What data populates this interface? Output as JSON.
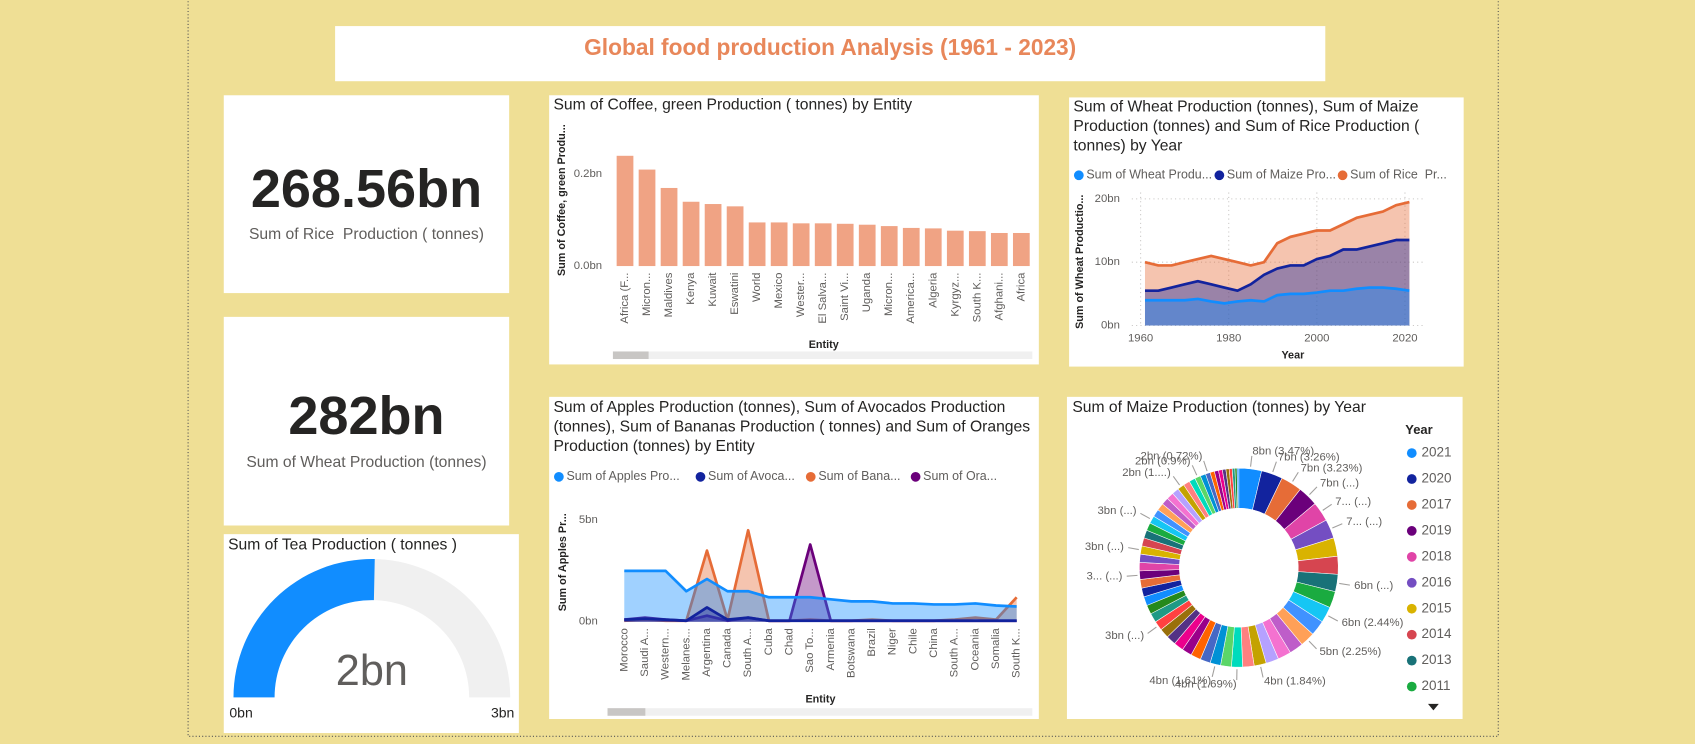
{
  "title": "Global food production Analysis (1961 - 2023)",
  "cards": [
    {
      "value": "268.56bn",
      "label": "Sum of Rice  Production ( tonnes)"
    },
    {
      "value": "282bn",
      "label": "Sum of Wheat Production (tonnes)"
    }
  ],
  "chart_data": [
    {
      "type": "bar",
      "title": "Sum of Coffee, green Production ( tonnes) by Entity",
      "x_label": "Entity",
      "y_label": "Sum of Coffee, green Produ...",
      "categories": [
        "Africa (F...",
        "Micron...",
        "Maldives",
        "Kenya",
        "Kuwait",
        "Eswatini",
        "World",
        "Mexico",
        "Wester...",
        "El Salva...",
        "Saint Vi...",
        "Uganda",
        "Micron...",
        "America...",
        "Algeria",
        "Kyrgyz...",
        "South K...",
        "Afghani...",
        "Africa"
      ],
      "values": [
        0.24,
        0.21,
        0.17,
        0.14,
        0.135,
        0.13,
        0.095,
        0.095,
        0.093,
        0.093,
        0.092,
        0.09,
        0.087,
        0.083,
        0.082,
        0.077,
        0.076,
        0.072,
        0.072
      ],
      "color": "#f0a384",
      "ylim": [
        0,
        0.28
      ],
      "yticks": [
        {
          "value": 0,
          "label": "0.0bn"
        },
        {
          "value": 0.2,
          "label": "0.2bn"
        }
      ],
      "grid": false
    },
    {
      "type": "area",
      "title": "Sum of Wheat Production (tonnes), Sum of Maize Production (tonnes) and Sum of Rice Production ( tonnes) by Year",
      "x_label": "Year",
      "y_label": "Sum of Wheat Productio...",
      "x": [
        1961,
        1964,
        1967,
        1970,
        1973,
        1976,
        1979,
        1982,
        1985,
        1988,
        1991,
        1994,
        1997,
        2000,
        2003,
        2006,
        2009,
        2012,
        2015,
        2018,
        2021
      ],
      "series": [
        {
          "name": "Sum of Wheat Produ...",
          "color": "#118dff",
          "values": [
            4,
            4,
            4,
            4,
            4.2,
            3.8,
            3.5,
            3.8,
            4,
            3.8,
            4.8,
            5,
            5,
            5.2,
            5.5,
            5.5,
            5.8,
            6,
            6,
            5.8,
            5.5
          ]
        },
        {
          "name": "Sum of Maize Pro...",
          "color": "#12239e",
          "values": [
            5.5,
            5.5,
            6,
            6.5,
            7,
            6.5,
            6,
            5.5,
            6.5,
            8,
            9,
            9.5,
            9.5,
            10.5,
            11,
            12,
            12,
            12.5,
            13,
            13.5,
            13.5
          ]
        },
        {
          "name": "Sum of Rice  Pr...",
          "color": "#e66c37",
          "values": [
            10,
            9.5,
            9.5,
            10,
            10.5,
            11,
            10.5,
            10,
            9.5,
            10,
            13,
            14,
            14.5,
            15,
            15,
            16,
            17,
            17.5,
            18,
            19,
            19.5
          ]
        }
      ],
      "xlim": [
        1958,
        2024
      ],
      "xticks": [
        1960,
        1980,
        2000,
        2020
      ],
      "ylim": [
        0,
        21
      ],
      "yticks": [
        {
          "value": 0,
          "label": "0bn"
        },
        {
          "value": 10,
          "label": "10bn"
        },
        {
          "value": 20,
          "label": "20bn"
        }
      ],
      "grid": true,
      "legend": "top"
    },
    {
      "type": "gauge",
      "title": "Sum of Tea Production ( tonnes )",
      "values": [
        1.52
      ],
      "value_labels": [
        "2bn"
      ],
      "color": "#118dff",
      "track_color": "#f0f0f0",
      "ylim": [
        0,
        3
      ],
      "yticks": [
        {
          "value": 0,
          "label": "0bn"
        },
        {
          "value": 3,
          "label": "3bn"
        }
      ]
    },
    {
      "type": "area",
      "title": "Sum of Apples Production (tonnes), Sum of Avocados Production (tonnes), Sum of Bananas Production ( tonnes) and Sum of Oranges Production (tonnes) by Entity",
      "x_label": "Entity",
      "y_label": "Sum of Apples Pr...",
      "categories": [
        "Morocco",
        "Saudi A...",
        "Western...",
        "Melanes...",
        "Argentina",
        "Canada",
        "South A...",
        "Cuba",
        "Chad",
        "Sao To...",
        "Armenia",
        "Botswana",
        "Brazil",
        "Niger",
        "Chile",
        "China",
        "South A...",
        "Oceania",
        "Somalia",
        "South K..."
      ],
      "series": [
        {
          "name": "Sum of Apples Pro...",
          "color": "#118dff",
          "values": [
            2.5,
            2.5,
            2.5,
            1.5,
            2.1,
            1.5,
            1.5,
            1.2,
            1.2,
            1.2,
            1.1,
            1.0,
            1.0,
            0.9,
            0.9,
            0.85,
            0.85,
            0.9,
            0.8,
            0.75
          ]
        },
        {
          "name": "Sum of Avoca...",
          "color": "#12239e",
          "values": [
            0.1,
            0.15,
            0.1,
            0.05,
            0.7,
            0.1,
            0.2,
            0.05,
            0.05,
            0.05,
            0.05,
            0.05,
            0.05,
            0.05,
            0.05,
            0.05,
            0.05,
            0.05,
            0.05,
            0.05
          ]
        },
        {
          "name": "Sum of Bana...",
          "color": "#e66c37",
          "values": [
            0.05,
            0.1,
            0.05,
            0.05,
            3.5,
            0.1,
            4.5,
            0.05,
            0.05,
            0.1,
            0.05,
            0.05,
            0.1,
            0.05,
            0.05,
            0.05,
            0.1,
            0.2,
            0.1,
            1.2
          ]
        },
        {
          "name": "Sum of Ora...",
          "color": "#6b007b",
          "values": [
            0.1,
            0.2,
            0.1,
            0.05,
            0.3,
            0.05,
            0.2,
            0.05,
            0.05,
            3.8,
            0.05,
            0.05,
            0.05,
            0.05,
            0.05,
            0.05,
            0.05,
            0.05,
            0.05,
            0.05
          ]
        }
      ],
      "ylim": [
        0,
        5.5
      ],
      "yticks": [
        {
          "value": 0,
          "label": "0bn"
        },
        {
          "value": 5,
          "label": "5bn"
        }
      ],
      "grid": false,
      "legend": "top"
    },
    {
      "type": "donut",
      "title": "Sum of Maize Production (tonnes) by Year",
      "legend_title": "Year",
      "categories": [
        2021,
        2020,
        2017,
        2019,
        2018,
        2016,
        2015,
        2014,
        2013,
        2011,
        null,
        null,
        null,
        null,
        null,
        null,
        null,
        null,
        null,
        null,
        null,
        null,
        null,
        null,
        null,
        null,
        null,
        null,
        null,
        null,
        null,
        null,
        null,
        null,
        null,
        null,
        null,
        null,
        null,
        null,
        null,
        null,
        null,
        null,
        null,
        null,
        null,
        null,
        null,
        null,
        null,
        null,
        null,
        null,
        null,
        null,
        null,
        null,
        null,
        null,
        null
      ],
      "values": [
        7.99,
        7.5,
        7.44,
        7.1,
        6.9,
        6.7,
        6.5,
        6.3,
        6.1,
        5.8,
        5.62,
        5.4,
        5.18,
        4.9,
        4.7,
        4.5,
        4.24,
        4.05,
        3.89,
        3.8,
        3.71,
        3.6,
        3.55,
        3.5,
        3.45,
        3.4,
        3.35,
        3.3,
        3.25,
        3.2,
        3.15,
        3.1,
        3.05,
        3.0,
        2.95,
        2.9,
        2.9,
        2.85,
        2.8,
        2.75,
        2.7,
        2.65,
        2.6,
        2.55,
        2.5,
        2.45,
        2.4,
        2.3,
        2.2,
        2.07,
        1.9,
        1.66,
        1.55,
        1.45,
        1.35,
        1.25,
        1.15,
        1.05,
        0.95,
        0.75,
        0.61
      ],
      "value_labels": [
        "8bn (3.47%)",
        "7bn (3.26%)",
        "7bn (3.23%)",
        "7bn (...)",
        "7... (...)",
        "7... (...)",
        null,
        null,
        "6bn (...)",
        null,
        "6bn (2.44%)",
        null,
        "5bn (2.25%)",
        null,
        null,
        null,
        "4bn (1.84%)",
        null,
        "4bn (1.69%)",
        null,
        "4bn (1.61%)",
        null,
        null,
        null,
        null,
        null,
        null,
        "3bn (...)",
        null,
        null,
        null,
        null,
        null,
        "3... (...)",
        null,
        null,
        "3bn (...)",
        null,
        null,
        null,
        "3bn (...)",
        null,
        null,
        null,
        null,
        null,
        "2bn (1....)",
        null,
        null,
        "2bn (0.9%)",
        null,
        "2bn (0.72%)",
        null,
        null,
        null,
        null,
        null,
        null,
        null,
        null,
        null
      ],
      "colors": [
        "#118dff",
        "#12239e",
        "#e66c37",
        "#6b007b",
        "#e044a7",
        "#744ec2",
        "#d9b300",
        "#d64550",
        "#197278",
        "#1aab40",
        "#15c6f4",
        "#4092ff",
        "#ffa058",
        "#be5dc9",
        "#f472d0",
        "#b5a1ff",
        "#c4a200",
        "#ff8080",
        "#00dbbc",
        "#5bd667",
        "#0091d5",
        "#4668c5",
        "#ff6300",
        "#99008a",
        "#ec008c",
        "#533285",
        "#99700a",
        "#ff4141",
        "#1f9a85",
        "#25891c"
      ]
    }
  ]
}
